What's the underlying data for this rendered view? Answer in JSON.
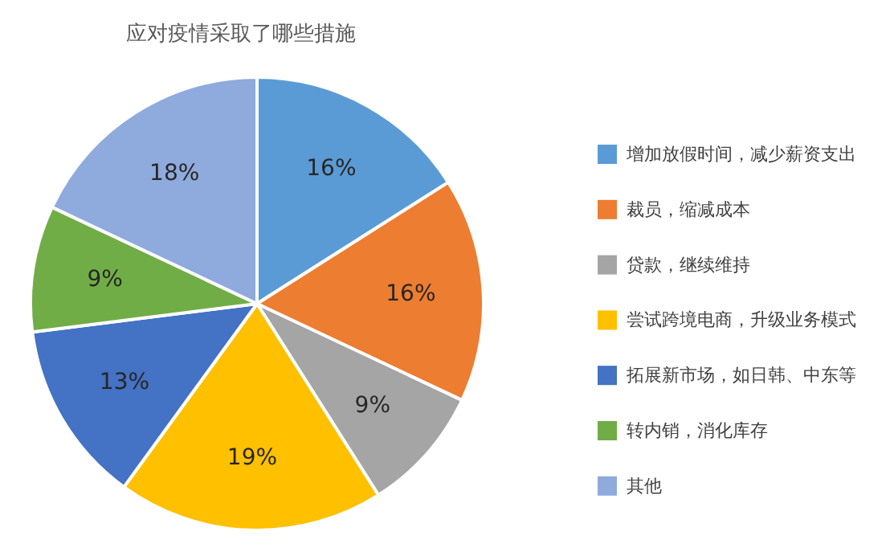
{
  "chart_data": {
    "type": "pie",
    "title": "应对疫情采取了哪些措施",
    "categories": [
      "增加放假时间，减少薪资支出",
      "裁员，缩减成本",
      "贷款，继续维持",
      "尝试跨境电商，升级业务模式",
      "拓展新市场，如日韩、中东等",
      "转内销，消化库存",
      "其他"
    ],
    "values": [
      16,
      16,
      9,
      19,
      13,
      9,
      18
    ],
    "colors": [
      "#5b9bd5",
      "#ed7d31",
      "#a5a5a5",
      "#ffc000",
      "#4472c4",
      "#70ad47",
      "#8faadc"
    ],
    "value_labels": [
      "16%",
      "16%",
      "9%",
      "19%",
      "13%",
      "9%",
      "18%"
    ],
    "legend": "right"
  }
}
